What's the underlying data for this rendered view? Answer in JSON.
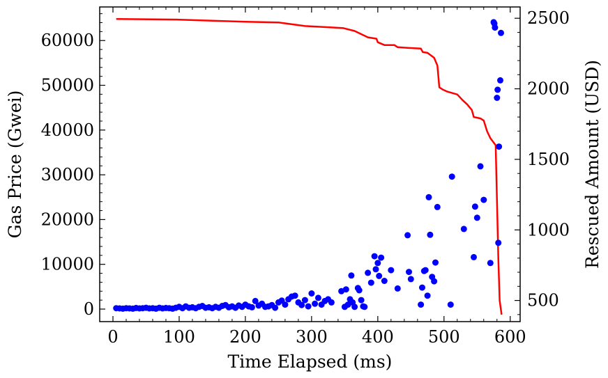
{
  "chart_data": {
    "type": "scatter+line",
    "title": "",
    "xlabel": "Time Elapsed (ms)",
    "ylabel_left": "Gas Price (Gwei)",
    "ylabel_right": "Rescued Amount (USD)",
    "xlim": [
      -20,
      615
    ],
    "ylim_left": [
      -2800,
      67500
    ],
    "ylim_right": [
      350,
      2580
    ],
    "x_ticks": [
      0,
      100,
      200,
      300,
      400,
      500,
      600
    ],
    "y_left_ticks": [
      0,
      10000,
      20000,
      30000,
      40000,
      50000,
      60000
    ],
    "y_right_ticks": [
      500,
      1000,
      1500,
      2000,
      2500
    ],
    "grid": false,
    "colors": {
      "scatter": "#0000ff",
      "line": "#ff0000",
      "axes": "#000000"
    },
    "series": [
      {
        "name": "Gas Price",
        "axis": "left",
        "kind": "scatter",
        "points": [
          [
            5,
            200
          ],
          [
            10,
            150
          ],
          [
            15,
            100
          ],
          [
            20,
            200
          ],
          [
            25,
            150
          ],
          [
            30,
            100
          ],
          [
            35,
            250
          ],
          [
            40,
            150
          ],
          [
            45,
            200
          ],
          [
            50,
            300
          ],
          [
            55,
            150
          ],
          [
            60,
            200
          ],
          [
            65,
            100
          ],
          [
            70,
            300
          ],
          [
            75,
            150
          ],
          [
            80,
            250
          ],
          [
            85,
            200
          ],
          [
            90,
            100
          ],
          [
            95,
            300
          ],
          [
            100,
            500
          ],
          [
            105,
            200
          ],
          [
            110,
            600
          ],
          [
            115,
            300
          ],
          [
            120,
            400
          ],
          [
            125,
            200
          ],
          [
            130,
            500
          ],
          [
            135,
            700
          ],
          [
            140,
            300
          ],
          [
            145,
            400
          ],
          [
            150,
            200
          ],
          [
            155,
            500
          ],
          [
            160,
            300
          ],
          [
            165,
            700
          ],
          [
            170,
            900
          ],
          [
            175,
            400
          ],
          [
            180,
            600
          ],
          [
            185,
            300
          ],
          [
            190,
            800
          ],
          [
            195,
            500
          ],
          [
            200,
            1000
          ],
          [
            205,
            600
          ],
          [
            210,
            400
          ],
          [
            215,
            1800
          ],
          [
            220,
            800
          ],
          [
            225,
            1200
          ],
          [
            230,
            500
          ],
          [
            235,
            600
          ],
          [
            240,
            900
          ],
          [
            245,
            300
          ],
          [
            250,
            1500
          ],
          [
            255,
            1900
          ],
          [
            260,
            1000
          ],
          [
            265,
            2200
          ],
          [
            270,
            2800
          ],
          [
            275,
            3000
          ],
          [
            280,
            1500
          ],
          [
            285,
            900
          ],
          [
            290,
            2000
          ],
          [
            295,
            600
          ],
          [
            300,
            3500
          ],
          [
            305,
            1200
          ],
          [
            310,
            2500
          ],
          [
            315,
            1000
          ],
          [
            320,
            1800
          ],
          [
            325,
            2200
          ],
          [
            330,
            1500
          ],
          [
            345,
            4000
          ],
          [
            350,
            500
          ],
          [
            352,
            4400
          ],
          [
            355,
            1000
          ],
          [
            358,
            2200
          ],
          [
            360,
            7500
          ],
          [
            362,
            1500
          ],
          [
            365,
            500
          ],
          [
            370,
            4700
          ],
          [
            372,
            4200
          ],
          [
            375,
            2000
          ],
          [
            378,
            600
          ],
          [
            380,
            500
          ],
          [
            385,
            8100
          ],
          [
            390,
            5900
          ],
          [
            395,
            11800
          ],
          [
            397,
            8900
          ],
          [
            400,
            10300
          ],
          [
            402,
            7400
          ],
          [
            405,
            11500
          ],
          [
            410,
            6300
          ],
          [
            420,
            8700
          ],
          [
            430,
            4600
          ],
          [
            445,
            16500
          ],
          [
            447,
            8300
          ],
          [
            450,
            6700
          ],
          [
            465,
            1000
          ],
          [
            467,
            4800
          ],
          [
            470,
            8500
          ],
          [
            472,
            8700
          ],
          [
            475,
            3000
          ],
          [
            477,
            25000
          ],
          [
            479,
            16600
          ],
          [
            482,
            7200
          ],
          [
            485,
            6200
          ],
          [
            487,
            10400
          ],
          [
            490,
            22800
          ],
          [
            510,
            1000
          ],
          [
            512,
            29600
          ],
          [
            530,
            17900
          ],
          [
            545,
            11600
          ],
          [
            547,
            22900
          ],
          [
            550,
            20400
          ],
          [
            555,
            31900
          ],
          [
            560,
            24400
          ],
          [
            570,
            10300
          ],
          [
            575,
            64100
          ],
          [
            576,
            63800
          ],
          [
            577,
            62900
          ],
          [
            580,
            47200
          ],
          [
            581,
            49000
          ],
          [
            582,
            14800
          ],
          [
            583,
            36300
          ],
          [
            585,
            51100
          ],
          [
            586,
            61700
          ]
        ]
      },
      {
        "name": "Rescued Amount",
        "axis": "right",
        "kind": "line",
        "points": [
          [
            5,
            2495
          ],
          [
            100,
            2490
          ],
          [
            200,
            2475
          ],
          [
            250,
            2470
          ],
          [
            290,
            2445
          ],
          [
            330,
            2435
          ],
          [
            348,
            2430
          ],
          [
            365,
            2410
          ],
          [
            385,
            2365
          ],
          [
            398,
            2355
          ],
          [
            400,
            2330
          ],
          [
            410,
            2310
          ],
          [
            425,
            2310
          ],
          [
            430,
            2295
          ],
          [
            445,
            2290
          ],
          [
            465,
            2285
          ],
          [
            468,
            2260
          ],
          [
            475,
            2255
          ],
          [
            485,
            2220
          ],
          [
            490,
            2165
          ],
          [
            493,
            2010
          ],
          [
            498,
            1995
          ],
          [
            505,
            1980
          ],
          [
            520,
            1960
          ],
          [
            528,
            1920
          ],
          [
            535,
            1890
          ],
          [
            542,
            1850
          ],
          [
            545,
            1800
          ],
          [
            555,
            1790
          ],
          [
            560,
            1775
          ],
          [
            565,
            1700
          ],
          [
            570,
            1650
          ],
          [
            578,
            1600
          ],
          [
            580,
            1200
          ],
          [
            582,
            800
          ],
          [
            584,
            500
          ],
          [
            587,
            400
          ]
        ]
      }
    ]
  }
}
